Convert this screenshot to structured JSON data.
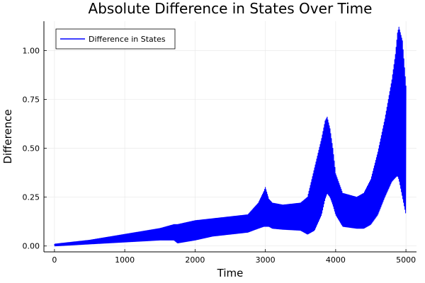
{
  "chart_data": {
    "type": "line",
    "title": "Absolute Difference in States Over Time",
    "xlabel": "Time",
    "ylabel": "Difference",
    "xlim": [
      -150,
      5150
    ],
    "ylim": [
      -0.03,
      1.15
    ],
    "xticks": [
      0,
      1000,
      2000,
      3000,
      4000,
      5000
    ],
    "xtick_labels": [
      "0",
      "1000",
      "2000",
      "3000",
      "4000",
      "5000"
    ],
    "yticks": [
      0.0,
      0.25,
      0.5,
      0.75,
      1.0
    ],
    "ytick_labels": [
      "0.00",
      "0.25",
      "0.50",
      "0.75",
      "1.00"
    ],
    "grid": true,
    "legend_position": "top-left",
    "series": [
      {
        "name": "Difference in States",
        "color": "#0000ff",
        "style": "rapid oscillation between lower and upper envelopes",
        "envelope_x": [
          0,
          250,
          500,
          750,
          1000,
          1250,
          1500,
          1700,
          1750,
          2000,
          2250,
          2500,
          2750,
          2900,
          2980,
          3000,
          3050,
          3100,
          3250,
          3500,
          3600,
          3700,
          3800,
          3850,
          3880,
          3920,
          3960,
          4000,
          4100,
          4300,
          4400,
          4500,
          4600,
          4700,
          4800,
          4850,
          4880,
          4900,
          4950,
          5000
        ],
        "envelope_upper": [
          0.01,
          0.02,
          0.03,
          0.045,
          0.06,
          0.075,
          0.09,
          0.11,
          0.11,
          0.13,
          0.14,
          0.15,
          0.16,
          0.22,
          0.28,
          0.3,
          0.24,
          0.22,
          0.21,
          0.22,
          0.25,
          0.4,
          0.55,
          0.64,
          0.66,
          0.6,
          0.5,
          0.37,
          0.27,
          0.25,
          0.27,
          0.34,
          0.48,
          0.65,
          0.85,
          0.98,
          1.09,
          1.12,
          1.05,
          0.82
        ],
        "envelope_lower": [
          0.0,
          0.005,
          0.01,
          0.015,
          0.02,
          0.025,
          0.03,
          0.03,
          0.015,
          0.03,
          0.05,
          0.06,
          0.07,
          0.09,
          0.1,
          0.1,
          0.1,
          0.09,
          0.085,
          0.08,
          0.06,
          0.08,
          0.16,
          0.24,
          0.27,
          0.25,
          0.21,
          0.16,
          0.1,
          0.09,
          0.09,
          0.11,
          0.16,
          0.25,
          0.33,
          0.35,
          0.36,
          0.34,
          0.25,
          0.16
        ]
      }
    ]
  }
}
